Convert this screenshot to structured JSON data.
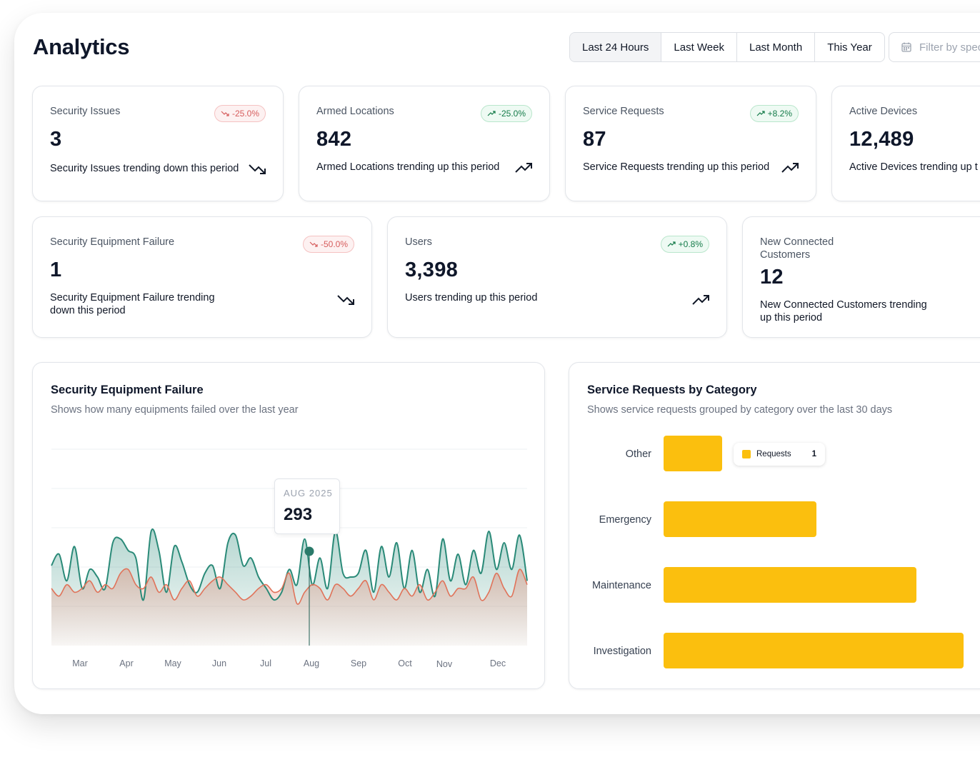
{
  "page": {
    "title": "Analytics"
  },
  "ranges": [
    {
      "label": "Last 24 Hours",
      "active": true
    },
    {
      "label": "Last Week",
      "active": false
    },
    {
      "label": "Last Month",
      "active": false
    },
    {
      "label": "This Year",
      "active": false
    }
  ],
  "filter": {
    "placeholder": "Filter by spec",
    "icon": "calendar-icon"
  },
  "kpis_row1": [
    {
      "label": "Security Issues",
      "value": "3",
      "badge": "-25.0%",
      "direction": "down",
      "desc": "Security Issues trending down this period"
    },
    {
      "label": "Armed Locations",
      "value": "842",
      "badge": "-25.0%",
      "direction": "up",
      "desc": "Armed Locations trending up this period"
    },
    {
      "label": "Service Requests",
      "value": "87",
      "badge": "+8.2%",
      "direction": "up",
      "desc": "Service Requests trending up this period"
    },
    {
      "label": "Active Devices",
      "value": "12,489",
      "badge": "",
      "direction": "up",
      "desc": "Active Devices trending up t"
    }
  ],
  "kpis_row2": [
    {
      "label": "Security Equipment Failure",
      "value": "1",
      "badge": "-50.0%",
      "direction": "down",
      "desc": "Security Equipment Failure trending down this period"
    },
    {
      "label": "Users",
      "value": "3,398",
      "badge": "+0.8%",
      "direction": "up",
      "desc": "Users trending up this period"
    },
    {
      "label": "New Connected Customers",
      "value": "12",
      "badge": "",
      "direction": "up",
      "desc": "New Connected Customers trending up this period"
    }
  ],
  "failure_chart": {
    "title": "Security Equipment Failure",
    "subtitle": "Shows how many equipments failed over the last year",
    "tooltip": {
      "label": "AUG 2025",
      "value": "293"
    },
    "colors": {
      "teal": "#2a8a78",
      "salmon": "#e0735a"
    },
    "chart_data": {
      "type": "area",
      "x_ticks": [
        "Mar",
        "Apr",
        "May",
        "Jun",
        "Jul",
        "Aug",
        "Sep",
        "Oct",
        "Nov",
        "Dec"
      ],
      "series": [
        {
          "values": [
            210,
            240,
            170,
            260,
            150,
            200,
            180,
            150,
            270,
            280,
            250,
            230,
            120,
            300,
            250,
            140,
            260,
            220,
            160,
            140,
            190,
            210,
            150,
            270,
            290,
            210,
            230,
            180,
            150,
            120,
            140,
            200,
            160,
            280,
            160,
            230,
            150,
            300,
            190,
            180,
            190,
            250,
            140,
            260,
            180,
            270,
            150,
            250,
            140,
            200,
            130,
            280,
            170,
            240,
            160,
            250,
            190,
            300,
            200,
            270,
            200,
            290,
            170
          ]
        },
        {
          "values": [
            150,
            130,
            160,
            140,
            150,
            170,
            140,
            160,
            150,
            190,
            200,
            160,
            150,
            180,
            140,
            160,
            120,
            150,
            170,
            130,
            150,
            170,
            180,
            160,
            140,
            120,
            130,
            150,
            160,
            140,
            150,
            190,
            110,
            140,
            160,
            150,
            120,
            160,
            150,
            130,
            150,
            170,
            120,
            160,
            140,
            120,
            150,
            130,
            160,
            120,
            140,
            170,
            130,
            150,
            150,
            180,
            120,
            140,
            190,
            150,
            130,
            200,
            160
          ]
        }
      ]
    }
  },
  "category_chart": {
    "title": "Service Requests by Category",
    "subtitle": "Shows service requests grouped by category over the last 30 days",
    "bar_color": "#fbbf0e",
    "legend": {
      "name": "Requests",
      "value": "1"
    },
    "chart_data": {
      "type": "bar",
      "orientation": "horizontal",
      "categories": [
        "Other",
        "Emergency",
        "Maintenance",
        "Investigation"
      ],
      "values": [
        1,
        2.6,
        4.3,
        5.1
      ]
    }
  }
}
